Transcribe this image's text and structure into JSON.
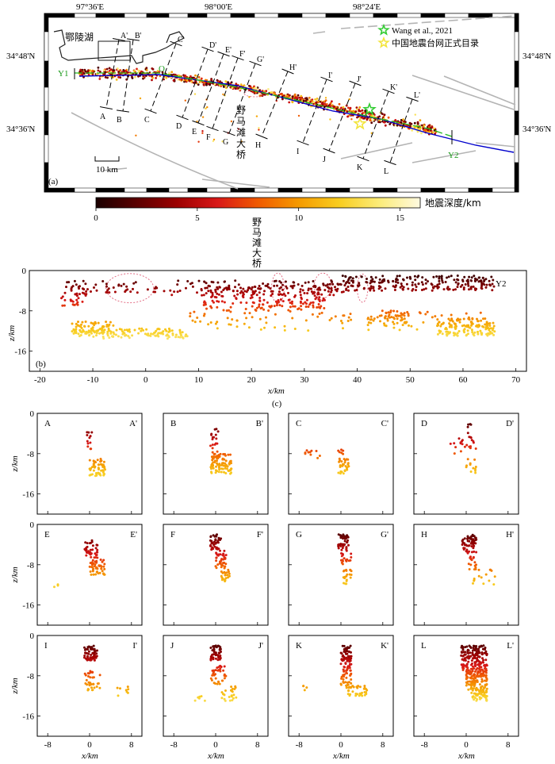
{
  "figure": {
    "colors": {
      "fault": "#b4b4b4",
      "lake": "#222222",
      "rupture_line": "#0000cc",
      "trace_line": "#22bb22",
      "label_green": "#1a9a1a",
      "ellipse": "#e0607a",
      "star_wang": "#33cc33",
      "star_cenc": "#f2e43a"
    }
  },
  "map": {
    "panel_label": "(a)",
    "lon_labels": [
      "97°36'E",
      "98°00'E",
      "98°24'E"
    ],
    "lat_labels": [
      "34°48'N",
      "34°36'N"
    ],
    "lake_label": "鄂陵湖",
    "bridge_label": [
      "野",
      "马",
      "滩",
      "大",
      "桥"
    ],
    "scale_label": "10 km",
    "trace_start": "Y1",
    "trace_end": "Y2",
    "epicenter_label": "O",
    "legend": [
      {
        "label": "Wang et al., 2021",
        "icon": "star-outline-green"
      },
      {
        "label": "中国地震台网正式目录",
        "icon": "star-outline-yellow"
      }
    ],
    "profiles": [
      {
        "start": "A",
        "end": "A'"
      },
      {
        "start": "B",
        "end": "B'"
      },
      {
        "start": "C",
        "end": "C'"
      },
      {
        "start": "D",
        "end": "D'"
      },
      {
        "start": "E",
        "end": "E'"
      },
      {
        "start": "F",
        "end": "F'"
      },
      {
        "start": "G",
        "end": "G'"
      },
      {
        "start": "H",
        "end": "H'"
      },
      {
        "start": "I",
        "end": "I'"
      },
      {
        "start": "J",
        "end": "J'"
      },
      {
        "start": "K",
        "end": "K'"
      },
      {
        "start": "L",
        "end": "L'"
      }
    ]
  },
  "colorbar": {
    "title": "地震深度/km",
    "ticks": [
      "0",
      "5",
      "10",
      "15"
    ],
    "range": [
      0,
      16
    ],
    "colors": [
      "#1a0000",
      "#5a0000",
      "#9c0000",
      "#d81818",
      "#f05a00",
      "#f59a00",
      "#f8cd20",
      "#fbec7a",
      "#fffae0"
    ]
  },
  "section": {
    "panel_label": "(b)",
    "end_label": "Y2",
    "bridge_label": [
      "野",
      "马",
      "滩",
      "大",
      "桥"
    ]
  },
  "profile_caption": "(c)",
  "chart_data": [
    {
      "type": "scatter",
      "panel": "b",
      "xlabel": "x/km",
      "ylabel": "z/km",
      "xlim": [
        -22,
        72
      ],
      "ylim": [
        0,
        20
      ],
      "y_inverted": true,
      "xticks": [
        -20,
        -10,
        0,
        10,
        20,
        30,
        40,
        50,
        60,
        70
      ],
      "yticks": [
        0,
        -8,
        -16
      ],
      "clusters": [
        {
          "x": [
            -15,
            38
          ],
          "depth": [
            2,
            5
          ],
          "count": 160
        },
        {
          "x": [
            11,
            34
          ],
          "depth": [
            3,
            8
          ],
          "count": 200
        },
        {
          "x": [
            37,
            66
          ],
          "depth": [
            1,
            4
          ],
          "count": 220
        },
        {
          "x": [
            -16,
            -11
          ],
          "depth": [
            3,
            7
          ],
          "count": 35
        },
        {
          "x": [
            -14,
            -6
          ],
          "depth": [
            10,
            12.5
          ],
          "count": 70
        },
        {
          "x": [
            -14,
            8
          ],
          "depth": [
            11.5,
            13.5
          ],
          "count": 130
        },
        {
          "x": [
            8,
            66
          ],
          "depth": [
            8,
            12
          ],
          "count": 110
        },
        {
          "x": [
            42,
            50
          ],
          "depth": [
            8,
            11
          ],
          "count": 45
        },
        {
          "x": [
            55,
            66
          ],
          "depth": [
            9.5,
            13
          ],
          "count": 130
        }
      ],
      "ellipses": [
        {
          "center": [
            -3,
            3.5
          ],
          "radii": [
            4.5,
            2.9
          ]
        },
        {
          "center": [
            25,
            3.5
          ],
          "radii": [
            1.2,
            3.0
          ]
        },
        {
          "center": [
            33.5,
            3.0
          ],
          "radii": [
            1.6,
            2.5
          ]
        },
        {
          "center": [
            41,
            3.5
          ],
          "radii": [
            1.0,
            2.8
          ]
        }
      ]
    },
    {
      "type": "scatter",
      "panel": "c",
      "xlabel": "x/km",
      "ylabel": "z/km",
      "xlim": [
        -10,
        10
      ],
      "ylim": [
        0,
        20
      ],
      "y_inverted": true,
      "xticks": [
        -8,
        0,
        8
      ],
      "yticks": [
        0,
        -8,
        -16
      ],
      "profiles": [
        {
          "name": "A-A'",
          "clusters": [
            {
              "x": [
                -0.5,
                0.5
              ],
              "depth": [
                3,
                8
              ],
              "count": 12
            },
            {
              "x": [
                0,
                3
              ],
              "depth": [
                9,
                12.5
              ],
              "count": 60
            }
          ]
        },
        {
          "name": "B-B'",
          "clusters": [
            {
              "x": [
                -1,
                0.5
              ],
              "depth": [
                3,
                8
              ],
              "count": 18
            },
            {
              "x": [
                -1,
                3
              ],
              "depth": [
                8,
                12
              ],
              "count": 90
            }
          ]
        },
        {
          "name": "C-C'",
          "clusters": [
            {
              "x": [
                -7,
                -4
              ],
              "depth": [
                7,
                9
              ],
              "count": 10
            },
            {
              "x": [
                -0.5,
                0.5
              ],
              "depth": [
                7,
                9
              ],
              "count": 6
            },
            {
              "x": [
                -0.5,
                1.5
              ],
              "depth": [
                9,
                12
              ],
              "count": 30
            }
          ]
        },
        {
          "name": "D-D'",
          "clusters": [
            {
              "x": [
                0,
                1
              ],
              "depth": [
                2,
                5
              ],
              "count": 8
            },
            {
              "x": [
                -3,
                2
              ],
              "depth": [
                5,
                8
              ],
              "count": 20
            },
            {
              "x": [
                0,
                2
              ],
              "depth": [
                9,
                12
              ],
              "count": 12
            }
          ]
        },
        {
          "name": "E-E'",
          "clusters": [
            {
              "x": [
                -1,
                1.5
              ],
              "depth": [
                3,
                7
              ],
              "count": 40
            },
            {
              "x": [
                0,
                3
              ],
              "depth": [
                7,
                10
              ],
              "count": 50
            },
            {
              "x": [
                -7,
                -5
              ],
              "depth": [
                11.5,
                12.5
              ],
              "count": 3
            }
          ]
        },
        {
          "name": "F-F'",
          "clusters": [
            {
              "x": [
                -1,
                1
              ],
              "depth": [
                2,
                5
              ],
              "count": 40
            },
            {
              "x": [
                0,
                2
              ],
              "depth": [
                5,
                9
              ],
              "count": 40
            },
            {
              "x": [
                1,
                3
              ],
              "depth": [
                9,
                11.5
              ],
              "count": 20
            }
          ]
        },
        {
          "name": "G-G'",
          "clusters": [
            {
              "x": [
                -0.5,
                1.5
              ],
              "depth": [
                2,
                5
              ],
              "count": 40
            },
            {
              "x": [
                0,
                2
              ],
              "depth": [
                5,
                8
              ],
              "count": 20
            },
            {
              "x": [
                0.5,
                2
              ],
              "depth": [
                9,
                12
              ],
              "count": 20
            }
          ]
        },
        {
          "name": "H-H'",
          "clusters": [
            {
              "x": [
                -1,
                2
              ],
              "depth": [
                2,
                5
              ],
              "count": 50
            },
            {
              "x": [
                0,
                2
              ],
              "depth": [
                5,
                9
              ],
              "count": 25
            },
            {
              "x": [
                0,
                6
              ],
              "depth": [
                9,
                12
              ],
              "count": 15
            }
          ]
        },
        {
          "name": "I-I'",
          "clusters": [
            {
              "x": [
                -1,
                1.5
              ],
              "depth": [
                2,
                5
              ],
              "count": 60
            },
            {
              "x": [
                -1,
                2
              ],
              "depth": [
                7,
                11
              ],
              "count": 35
            },
            {
              "x": [
                5,
                7.5
              ],
              "depth": [
                10,
                12
              ],
              "count": 8
            }
          ]
        },
        {
          "name": "J-J'",
          "clusters": [
            {
              "x": [
                -1,
                1
              ],
              "depth": [
                2,
                5
              ],
              "count": 45
            },
            {
              "x": [
                -1,
                2
              ],
              "depth": [
                6,
                10
              ],
              "count": 35
            },
            {
              "x": [
                1,
                4
              ],
              "depth": [
                10,
                13
              ],
              "count": 25
            },
            {
              "x": [
                -4,
                -2
              ],
              "depth": [
                12,
                13
              ],
              "count": 6
            }
          ]
        },
        {
          "name": "K-K'",
          "clusters": [
            {
              "x": [
                0,
                2
              ],
              "depth": [
                2,
                5
              ],
              "count": 50
            },
            {
              "x": [
                0,
                2
              ],
              "depth": [
                5,
                10
              ],
              "count": 50
            },
            {
              "x": [
                1,
                5
              ],
              "depth": [
                10,
                12
              ],
              "count": 35
            },
            {
              "x": [
                -8,
                -6
              ],
              "depth": [
                10,
                11
              ],
              "count": 4
            }
          ]
        },
        {
          "name": "L-L'",
          "clusters": [
            {
              "x": [
                -1,
                4
              ],
              "depth": [
                2,
                7
              ],
              "count": 160
            },
            {
              "x": [
                0,
                4
              ],
              "depth": [
                7,
                11
              ],
              "count": 120
            },
            {
              "x": [
                1,
                4
              ],
              "depth": [
                11,
                13
              ],
              "count": 40
            }
          ]
        }
      ]
    }
  ]
}
